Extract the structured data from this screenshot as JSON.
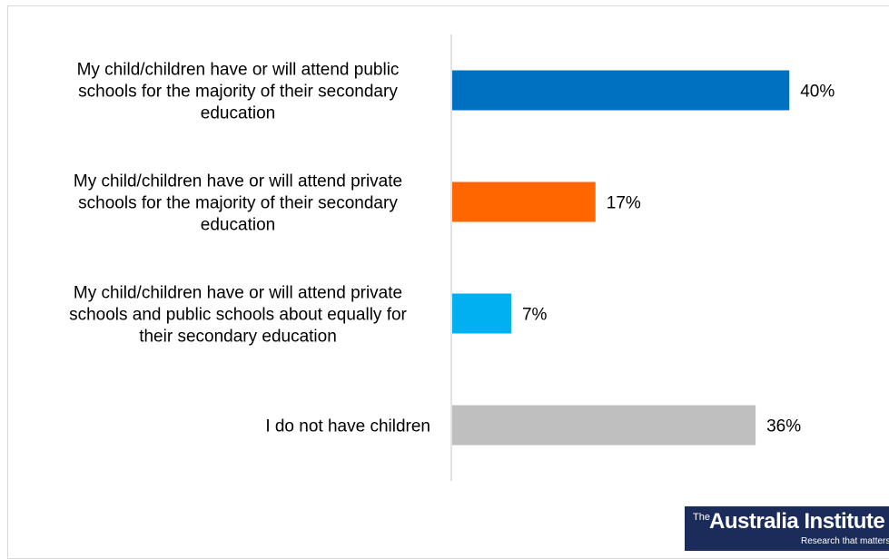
{
  "chart_data": {
    "type": "bar",
    "orientation": "horizontal",
    "categories": [
      [
        "My child/children have or will attend public",
        "schools for the majority of their secondary",
        "education"
      ],
      [
        "My child/children have or will attend private",
        "schools for the majority of their secondary",
        "education"
      ],
      [
        "My child/children have or will attend private",
        "schools and public schools about equally for",
        "their secondary education"
      ],
      [
        "I do not have children"
      ]
    ],
    "values": [
      40,
      17,
      7,
      36
    ],
    "value_labels": [
      "40%",
      "17%",
      "7%",
      "36%"
    ],
    "value_suffix": "%",
    "colors": [
      "#0070c0",
      "#ff6600",
      "#00b0f0",
      "#bfbfbf"
    ],
    "xlim": [
      0,
      50
    ],
    "grid": false,
    "legend": "none"
  },
  "logo": {
    "the": "The",
    "name": "Australia Institute",
    "tagline": "Research that matters"
  }
}
